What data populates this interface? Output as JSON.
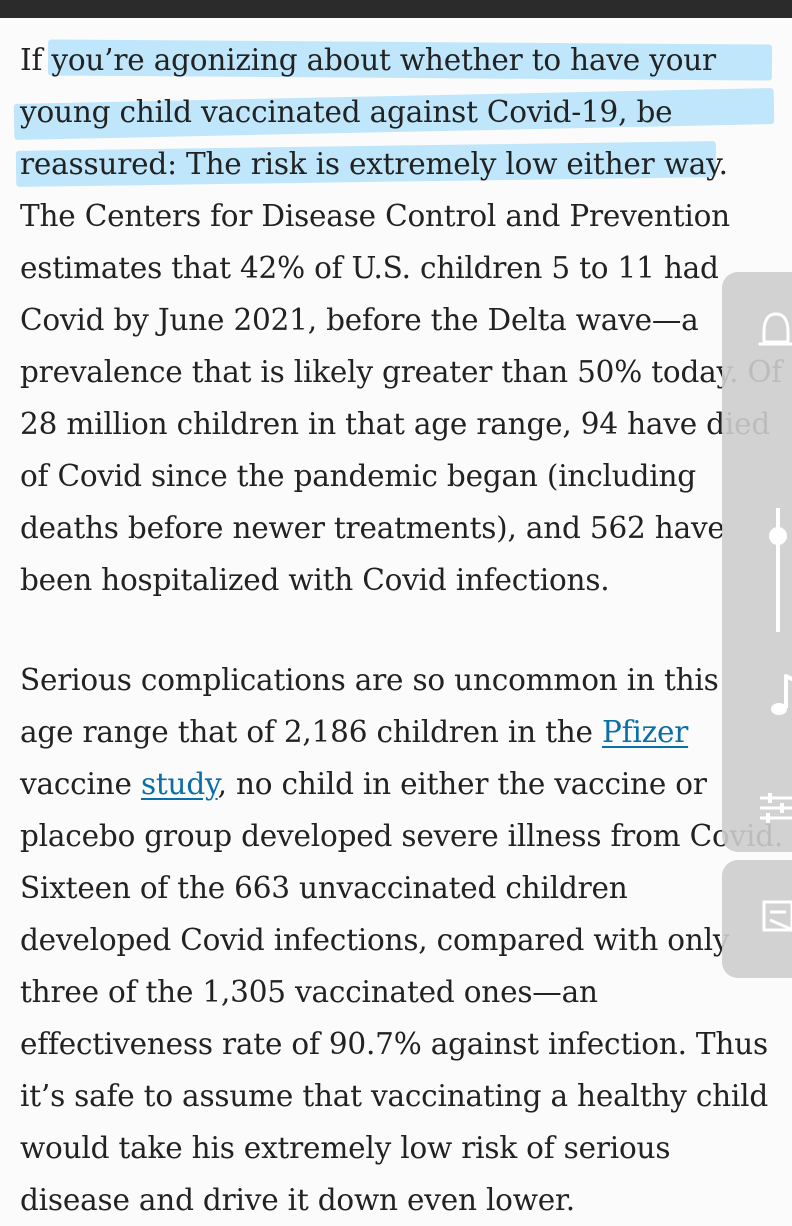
{
  "article": {
    "paragraphs": [
      {
        "lines": [
          "If you’re agonizing about whether to have your",
          "young child vaccinated against Covid-19, be",
          "reassured: The risk is extremely low either way.",
          "The Centers for Disease Control and Prevention",
          "estimates that 42% of U.S. children 5 to 11 had",
          "Covid by June 2021, before the Delta wave—a",
          "prevalence that is likely greater than 50% today. Of",
          "28 million children in that age range, 94 have died",
          "of Covid since the pandemic began (including",
          "deaths before newer treatments), and 562 have",
          "been hospitalized with Covid infections."
        ]
      },
      {
        "line1": "Serious complications are so uncommon in this",
        "line2_before": "age range that of 2,186 children in the ",
        "link_pfizer": "Pfizer",
        "line3_before": "vaccine ",
        "link_study": "study",
        "line3_after": ", no child in either the vaccine or",
        "rest": [
          "placebo group developed severe illness from Covid.",
          "Sixteen of the 663 unvaccinated children",
          "developed Covid infections, compared with only",
          "three of the 1,305 vaccinated ones—an",
          "effectiveness rate of 90.7% against infection. Thus",
          "it’s safe to assume that vaccinating a healthy child",
          "would take his extremely low risk of serious",
          "disease and drive it down even lower."
        ]
      }
    ]
  },
  "side_panel": {
    "icons": [
      "bell-icon",
      "brightness-slider-icon",
      "music-note-icon",
      "tune-icon",
      "note-edit-icon"
    ]
  },
  "colors": {
    "highlight": "#bfe6fa",
    "link": "#0a6fa6",
    "text": "#222222",
    "panel": "#cdcdcd"
  }
}
